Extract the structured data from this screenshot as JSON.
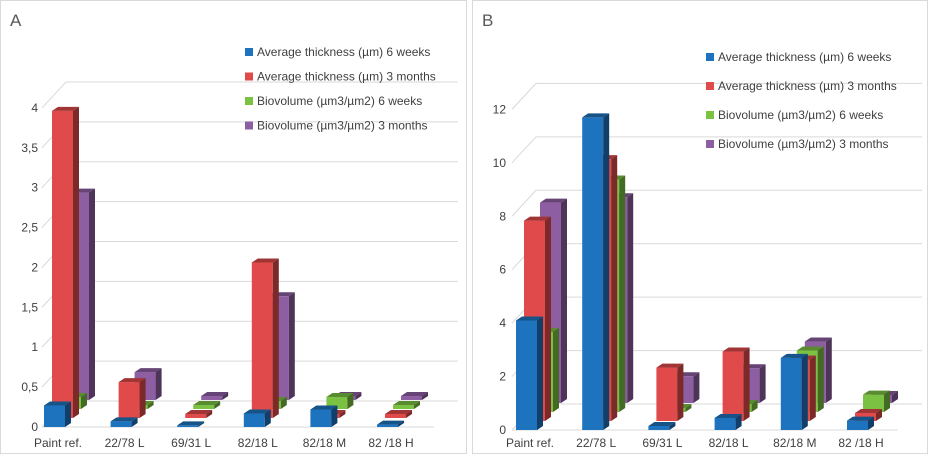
{
  "chart_data": [
    {
      "type": "bar",
      "panel_label": "A",
      "categories": [
        "Paint ref.",
        "22/78 L",
        "69/31 L",
        "82/18 L",
        "82/18 M",
        "82 /18 H"
      ],
      "y_ticks": [
        "0",
        "0,5",
        "1",
        "1,5",
        "2",
        "2,5",
        "3",
        "3,5",
        "4"
      ],
      "ylim": [
        0,
        4.2
      ],
      "grid": true,
      "legend_position": "top-right",
      "series": [
        {
          "name": "Average thickness (µm) 6 weeks",
          "color": "#1e73be",
          "values": [
            0.27,
            0.07,
            0.02,
            0.17,
            0.22,
            0.03
          ]
        },
        {
          "name": "Average thickness (µm) 3 months",
          "color": "#e04a4a",
          "values": [
            3.85,
            0.45,
            0.05,
            1.95,
            0.05,
            0.05
          ]
        },
        {
          "name": "Biovolume (µm3/µm2) 6 weeks",
          "color": "#7cc242",
          "values": [
            0.15,
            0.05,
            0.05,
            0.1,
            0.15,
            0.05
          ]
        },
        {
          "name": "Biovolume (µm3/µm2) 3 months",
          "color": "#8e5ea2",
          "values": [
            2.6,
            0.35,
            0.05,
            1.3,
            0.05,
            0.05
          ]
        }
      ]
    },
    {
      "type": "bar",
      "panel_label": "B",
      "categories": [
        "Paint ref.",
        "22/78 L",
        "69/31 L",
        "82/18 L",
        "82/18 M",
        "82 /18 H"
      ],
      "y_ticks": [
        "0",
        "2",
        "4",
        "6",
        "8",
        "10",
        "12"
      ],
      "ylim": [
        0,
        12.8
      ],
      "grid": true,
      "legend_position": "top-right",
      "series": [
        {
          "name": "Average thickness (µm) 6 weeks",
          "color": "#1e73be",
          "values": [
            4.1,
            11.7,
            0.15,
            0.45,
            2.7,
            0.35
          ]
        },
        {
          "name": "Average thickness (µm) 3 months",
          "color": "#e04a4a",
          "values": [
            7.5,
            9.8,
            2.0,
            2.6,
            2.3,
            0.3
          ]
        },
        {
          "name": "Biovolume (µm3/µm2) 6 weeks",
          "color": "#7cc242",
          "values": [
            3.0,
            8.7,
            0.15,
            0.3,
            2.3,
            0.65
          ]
        },
        {
          "name": "Biovolume (µm3/µm2) 3 months",
          "color": "#8e5ea2",
          "values": [
            7.5,
            7.7,
            1.0,
            1.3,
            2.3,
            0.3
          ]
        }
      ]
    }
  ]
}
